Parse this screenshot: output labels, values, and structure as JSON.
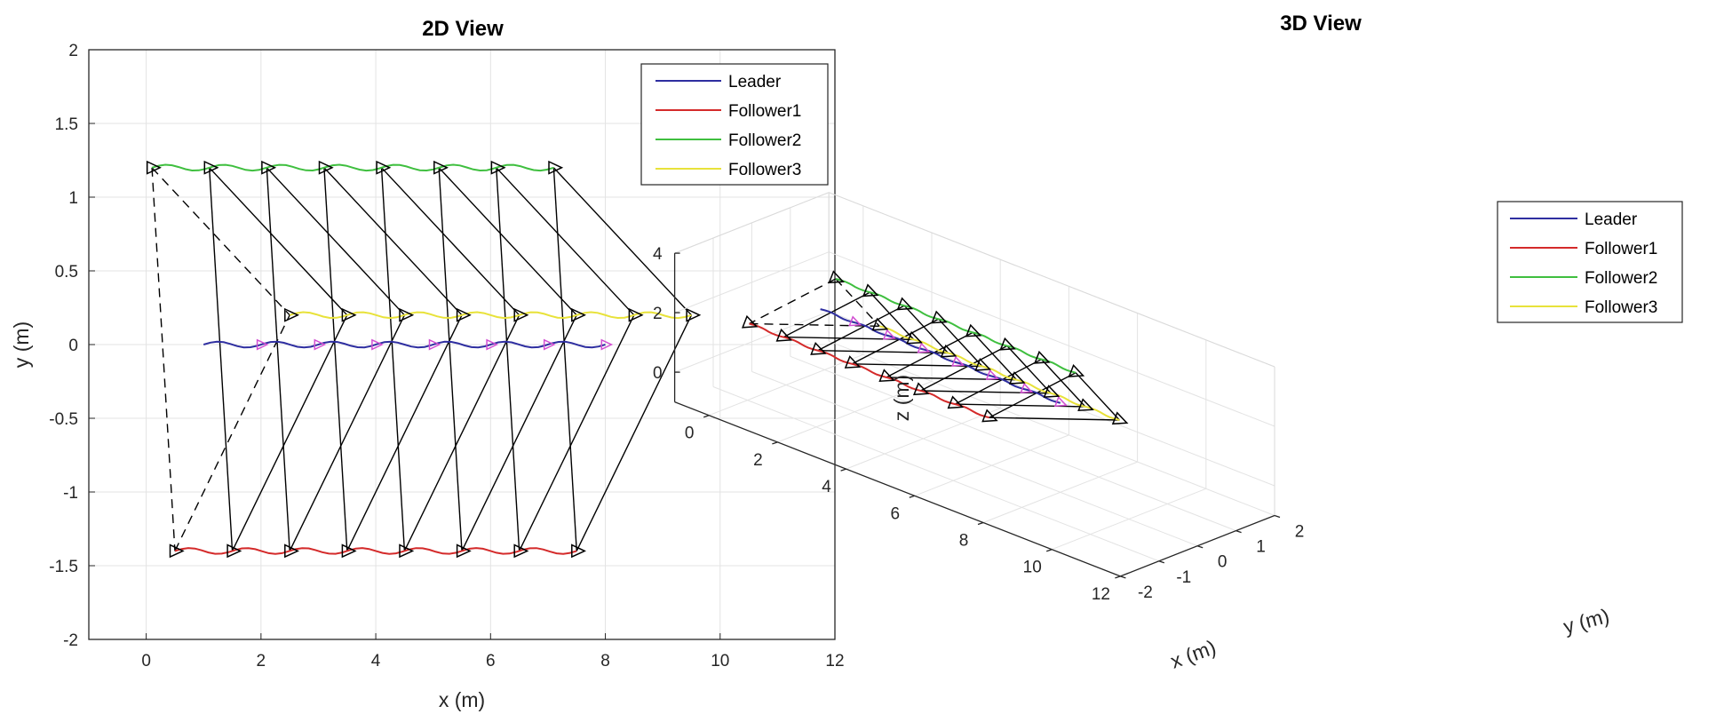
{
  "colors": {
    "leader": "#2e2ea0",
    "follower1": "#d42a2a",
    "follower2": "#3fbf3f",
    "follower3": "#e8e23a",
    "link": "#000000",
    "marker_leader": "#d24fd2",
    "grid": "#e3e3e3",
    "axis": "#262626"
  },
  "chart_data": [
    {
      "type": "line",
      "title": "2D View",
      "xlabel": "x (m)",
      "ylabel": "y (m)",
      "xlim": [
        -1,
        12
      ],
      "ylim": [
        -2,
        2
      ],
      "xticks": [
        0,
        2,
        4,
        6,
        8,
        10,
        12
      ],
      "yticks": [
        -2,
        -1.5,
        -1,
        -0.5,
        0,
        0.5,
        1,
        1.5,
        2
      ],
      "xtick_labels": [
        "0",
        "2",
        "4",
        "6",
        "8",
        "10",
        "12"
      ],
      "ytick_labels": [
        "-2",
        "-1.5",
        "-1",
        "-0.5",
        "0",
        "0.5",
        "1",
        "1.5",
        "2"
      ],
      "grid": true,
      "legend_position": "top-right",
      "legend": [
        "Leader",
        "Follower1",
        "Follower2",
        "Follower3"
      ],
      "series": [
        {
          "name": "Leader",
          "x": [
            1.0,
            8.0
          ],
          "y": [
            0.0,
            0.0
          ]
        },
        {
          "name": "Follower1",
          "x": [
            0.5,
            7.5
          ],
          "y": [
            -1.4,
            -1.4
          ]
        },
        {
          "name": "Follower2",
          "x": [
            0.1,
            7.1
          ],
          "y": [
            1.2,
            1.2
          ]
        },
        {
          "name": "Follower3",
          "x": [
            2.5,
            9.5
          ],
          "y": [
            0.2,
            0.2
          ]
        }
      ],
      "snapshots": {
        "leader_x": [
          1.0,
          2.0,
          3.0,
          4.0,
          5.0,
          6.0,
          7.0,
          8.0
        ],
        "leader_y": 0.0,
        "follower1_x": [
          0.5,
          1.5,
          2.5,
          3.5,
          4.5,
          5.5,
          6.5,
          7.5
        ],
        "follower1_y": -1.4,
        "follower2_x": [
          0.1,
          1.1,
          2.1,
          3.1,
          4.1,
          5.1,
          6.1,
          7.1
        ],
        "follower2_y": 1.2,
        "follower3_x": [
          2.5,
          3.5,
          4.5,
          5.5,
          6.5,
          7.5,
          8.5,
          9.5
        ],
        "follower3_y": 0.2
      }
    },
    {
      "type": "line",
      "title": "3D View",
      "xlabel": "x (m)",
      "ylabel": "y (m)",
      "zlabel": "z (m)",
      "xlim": [
        -1,
        12
      ],
      "ylim": [
        -2,
        2
      ],
      "zlim": [
        -1,
        4
      ],
      "xticks": [
        0,
        2,
        4,
        6,
        8,
        10,
        12
      ],
      "yticks": [
        -2,
        -1,
        0,
        1,
        2
      ],
      "zticks": [
        0,
        2,
        4
      ],
      "xtick_labels": [
        "0",
        "2",
        "4",
        "6",
        "8",
        "10",
        "12"
      ],
      "ytick_labels": [
        "-2",
        "-1",
        "0",
        "1",
        "2"
      ],
      "ztick_labels": [
        "0",
        "2",
        "4"
      ],
      "grid": true,
      "legend_position": "top-right",
      "legend": [
        "Leader",
        "Follower1",
        "Follower2",
        "Follower3"
      ],
      "altitude_m": 2
    }
  ]
}
